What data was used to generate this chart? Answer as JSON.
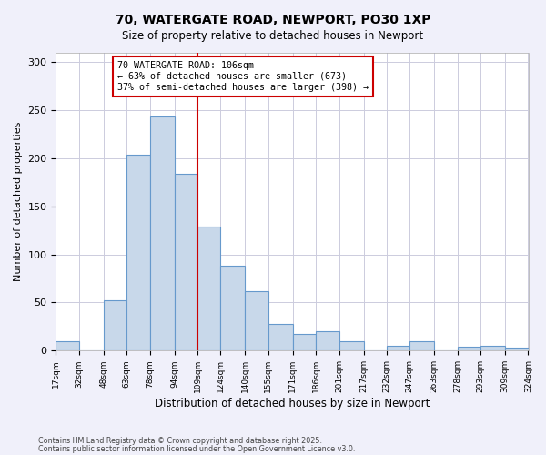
{
  "title": "70, WATERGATE ROAD, NEWPORT, PO30 1XP",
  "subtitle": "Size of property relative to detached houses in Newport",
  "xlabel": "Distribution of detached houses by size in Newport",
  "ylabel": "Number of detached properties",
  "bar_edges": [
    17,
    32,
    48,
    63,
    78,
    94,
    109,
    124,
    140,
    155,
    171,
    186,
    201,
    217,
    232,
    247,
    263,
    278,
    293,
    309,
    324
  ],
  "bar_heights": [
    10,
    0,
    52,
    204,
    243,
    184,
    129,
    88,
    62,
    28,
    17,
    20,
    10,
    0,
    5,
    10,
    0,
    4,
    5,
    3
  ],
  "bar_color": "#c8d8ea",
  "bar_edgecolor": "#6699cc",
  "vline_x": 109,
  "vline_color": "#cc0000",
  "annotation_line1": "70 WATERGATE ROAD: 106sqm",
  "annotation_line2": "← 63% of detached houses are smaller (673)",
  "annotation_line3": "37% of semi-detached houses are larger (398) →",
  "ylim": [
    0,
    310
  ],
  "yticks": [
    0,
    50,
    100,
    150,
    200,
    250,
    300
  ],
  "footnote1": "Contains HM Land Registry data © Crown copyright and database right 2025.",
  "footnote2": "Contains public sector information licensed under the Open Government Licence v3.0.",
  "background_color": "#f0f0fa",
  "plot_bg_color": "#ffffff",
  "grid_color": "#ccccdd"
}
